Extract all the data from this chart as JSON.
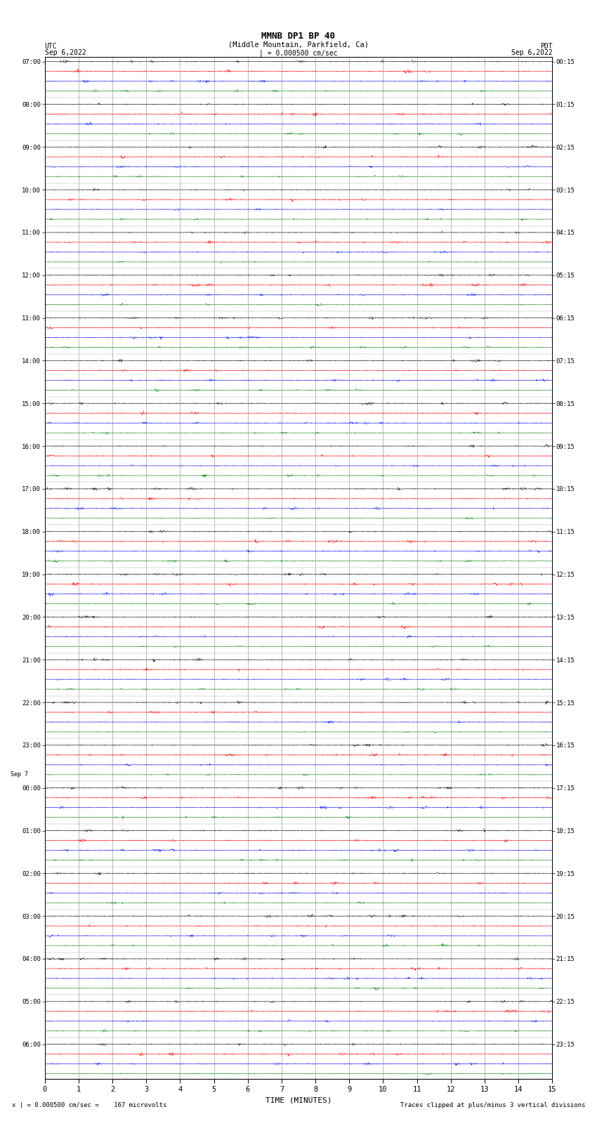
{
  "title_line1": "MMNB DP1 BP 40",
  "title_line2": "(Middle Mountain, Parkfield, Ca)",
  "left_header": "UTC",
  "right_header": "PDT",
  "left_date": "Sep 6,2022",
  "right_date": "Sep 6,2022",
  "scale_text": "| = 0.000500 cm/sec",
  "bottom_left": "x | = 0.000500 cm/sec =    167 microvolts",
  "bottom_right": "Traces clipped at plus/minus 3 vertical divisions",
  "xlabel": "TIME (MINUTES)",
  "xtick_vals": [
    0,
    1,
    2,
    3,
    4,
    5,
    6,
    7,
    8,
    9,
    10,
    11,
    12,
    13,
    14,
    15
  ],
  "time_minutes": 15,
  "num_groups": 24,
  "traces_per_group": 4,
  "colors": [
    "black",
    "red",
    "blue",
    "green"
  ],
  "noise_amplitude": 0.018,
  "burst_amplitude": 0.07,
  "fig_width": 8.5,
  "fig_height": 16.13,
  "dpi": 100,
  "left_times_utc": [
    "07:00",
    "08:00",
    "09:00",
    "10:00",
    "11:00",
    "12:00",
    "13:00",
    "14:00",
    "15:00",
    "16:00",
    "17:00",
    "18:00",
    "19:00",
    "20:00",
    "21:00",
    "22:00",
    "23:00",
    "00:00",
    "01:00",
    "02:00",
    "03:00",
    "04:00",
    "05:00",
    "06:00"
  ],
  "sep7_group": 17,
  "right_times_pdt": [
    "00:15",
    "01:15",
    "02:15",
    "03:15",
    "04:15",
    "05:15",
    "06:15",
    "07:15",
    "08:15",
    "09:15",
    "10:15",
    "11:15",
    "12:15",
    "13:15",
    "14:15",
    "15:15",
    "16:15",
    "17:15",
    "18:15",
    "19:15",
    "20:15",
    "21:15",
    "22:15",
    "23:15"
  ]
}
